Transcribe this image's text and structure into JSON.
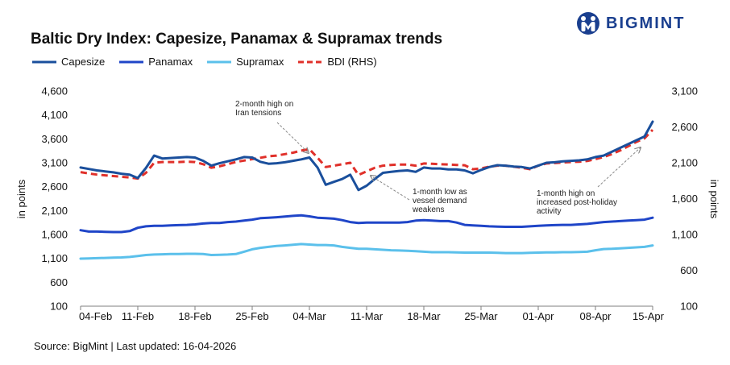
{
  "title": "Baltic Dry Index: Capesize, Panamax & Supramax trends",
  "brand": "BIGMINT",
  "source": "Source: BigMint | Last updated: 16-04-2026",
  "colors": {
    "capesize": "#1a4f9c",
    "panamax": "#1f45c8",
    "supramax": "#5bc0eb",
    "bdi": "#e0302a"
  },
  "chart_data": {
    "type": "line",
    "x": [
      "04-Feb",
      "05-Feb",
      "06-Feb",
      "07-Feb",
      "08-Feb",
      "09-Feb",
      "10-Feb",
      "11-Feb",
      "12-Feb",
      "13-Feb",
      "14-Feb",
      "15-Feb",
      "16-Feb",
      "17-Feb",
      "18-Feb",
      "19-Feb",
      "20-Feb",
      "21-Feb",
      "22-Feb",
      "23-Feb",
      "24-Feb",
      "25-Feb",
      "26-Feb",
      "27-Feb",
      "28-Feb",
      "01-Mar",
      "02-Mar",
      "03-Mar",
      "04-Mar",
      "05-Mar",
      "06-Mar",
      "07-Mar",
      "08-Mar",
      "09-Mar",
      "10-Mar",
      "11-Mar",
      "12-Mar",
      "13-Mar",
      "14-Mar",
      "15-Mar",
      "16-Mar",
      "17-Mar",
      "18-Mar",
      "19-Mar",
      "20-Mar",
      "21-Mar",
      "22-Mar",
      "23-Mar",
      "24-Mar",
      "25-Mar",
      "26-Mar",
      "27-Mar",
      "28-Mar",
      "29-Mar",
      "30-Mar",
      "31-Mar",
      "01-Apr",
      "02-Apr",
      "03-Apr",
      "04-Apr",
      "05-Apr",
      "06-Apr",
      "07-Apr",
      "08-Apr",
      "09-Apr",
      "10-Apr",
      "11-Apr",
      "12-Apr",
      "13-Apr",
      "14-Apr",
      "15-Apr"
    ],
    "x_tick_labels": [
      "04-Feb",
      "11-Feb",
      "18-Feb",
      "25-Feb",
      "04-Mar",
      "11-Mar",
      "18-Mar",
      "25-Mar",
      "01-Apr",
      "08-Apr",
      "15-Apr"
    ],
    "y_left": {
      "label": "in points",
      "ticks": [
        "100",
        "600",
        "1,100",
        "1,600",
        "2,100",
        "2,600",
        "3,100",
        "3,600",
        "4,100",
        "4,600"
      ],
      "range": [
        100,
        4600
      ]
    },
    "y_right": {
      "label": "in points",
      "ticks": [
        "100",
        "600",
        "1,100",
        "1,600",
        "2,100",
        "2,600",
        "3,100"
      ],
      "range": [
        100,
        3100
      ]
    },
    "grid": false,
    "legend_position": "top-left",
    "series": [
      {
        "name": "Capesize",
        "axis": "left",
        "style": "solid",
        "values": [
          3000,
          2970,
          2940,
          2920,
          2900,
          2870,
          2850,
          2780,
          2990,
          3250,
          3190,
          3200,
          3210,
          3220,
          3210,
          3140,
          3040,
          3090,
          3130,
          3170,
          3220,
          3210,
          3120,
          3080,
          3090,
          3110,
          3140,
          3170,
          3210,
          3000,
          2640,
          2700,
          2760,
          2850,
          2530,
          2620,
          2760,
          2890,
          2910,
          2930,
          2940,
          2910,
          3000,
          2980,
          2980,
          2960,
          2960,
          2940,
          2880,
          2950,
          3010,
          3050,
          3040,
          3020,
          3010,
          2980,
          3040,
          3100,
          3110,
          3130,
          3140,
          3150,
          3170,
          3220,
          3250,
          3330,
          3410,
          3490,
          3570,
          3650,
          3960
        ]
      },
      {
        "name": "Panamax",
        "axis": "left",
        "style": "solid",
        "values": [
          1690,
          1660,
          1660,
          1655,
          1650,
          1650,
          1670,
          1740,
          1770,
          1780,
          1780,
          1790,
          1795,
          1800,
          1810,
          1830,
          1840,
          1840,
          1860,
          1870,
          1890,
          1910,
          1940,
          1950,
          1960,
          1975,
          1990,
          2000,
          1980,
          1950,
          1940,
          1930,
          1900,
          1860,
          1840,
          1850,
          1850,
          1850,
          1850,
          1850,
          1860,
          1890,
          1900,
          1890,
          1880,
          1880,
          1850,
          1800,
          1790,
          1780,
          1770,
          1765,
          1760,
          1760,
          1760,
          1770,
          1780,
          1790,
          1795,
          1800,
          1800,
          1810,
          1820,
          1840,
          1860,
          1870,
          1880,
          1890,
          1900,
          1910,
          1950
        ]
      },
      {
        "name": "Supramax",
        "axis": "left",
        "style": "solid",
        "values": [
          1095,
          1100,
          1105,
          1110,
          1115,
          1120,
          1130,
          1150,
          1170,
          1180,
          1185,
          1190,
          1190,
          1195,
          1195,
          1190,
          1170,
          1175,
          1180,
          1190,
          1240,
          1290,
          1320,
          1340,
          1360,
          1370,
          1385,
          1400,
          1390,
          1380,
          1380,
          1370,
          1340,
          1320,
          1300,
          1300,
          1290,
          1280,
          1270,
          1265,
          1260,
          1250,
          1240,
          1230,
          1230,
          1230,
          1225,
          1220,
          1220,
          1220,
          1220,
          1215,
          1210,
          1210,
          1210,
          1215,
          1220,
          1225,
          1225,
          1230,
          1230,
          1235,
          1240,
          1270,
          1295,
          1300,
          1310,
          1320,
          1330,
          1340,
          1370
        ]
      },
      {
        "name": "BDI (RHS)",
        "axis": "right",
        "style": "dashed",
        "values": [
          1970,
          1950,
          1935,
          1925,
          1915,
          1905,
          1895,
          1880,
          1960,
          2100,
          2110,
          2110,
          2110,
          2115,
          2110,
          2080,
          2030,
          2050,
          2080,
          2110,
          2130,
          2150,
          2170,
          2190,
          2200,
          2220,
          2240,
          2270,
          2290,
          2170,
          2040,
          2060,
          2080,
          2100,
          1930,
          1980,
          2030,
          2060,
          2070,
          2075,
          2075,
          2060,
          2090,
          2085,
          2080,
          2075,
          2070,
          2065,
          2010,
          2020,
          2045,
          2060,
          2060,
          2045,
          2030,
          2010,
          2060,
          2090,
          2095,
          2105,
          2110,
          2115,
          2125,
          2150,
          2180,
          2220,
          2270,
          2330,
          2390,
          2440,
          2560
        ]
      }
    ],
    "annotations": [
      {
        "lines": [
          "2-month high on",
          "Iran tensions"
        ],
        "x": "04-Mar"
      },
      {
        "lines": [
          "1-month low as",
          "vessel demand",
          "weakens"
        ],
        "x": "10-Mar"
      },
      {
        "lines": [
          "1-month high on",
          "increased post-holiday",
          "activity"
        ],
        "x": "14-Apr"
      }
    ]
  }
}
